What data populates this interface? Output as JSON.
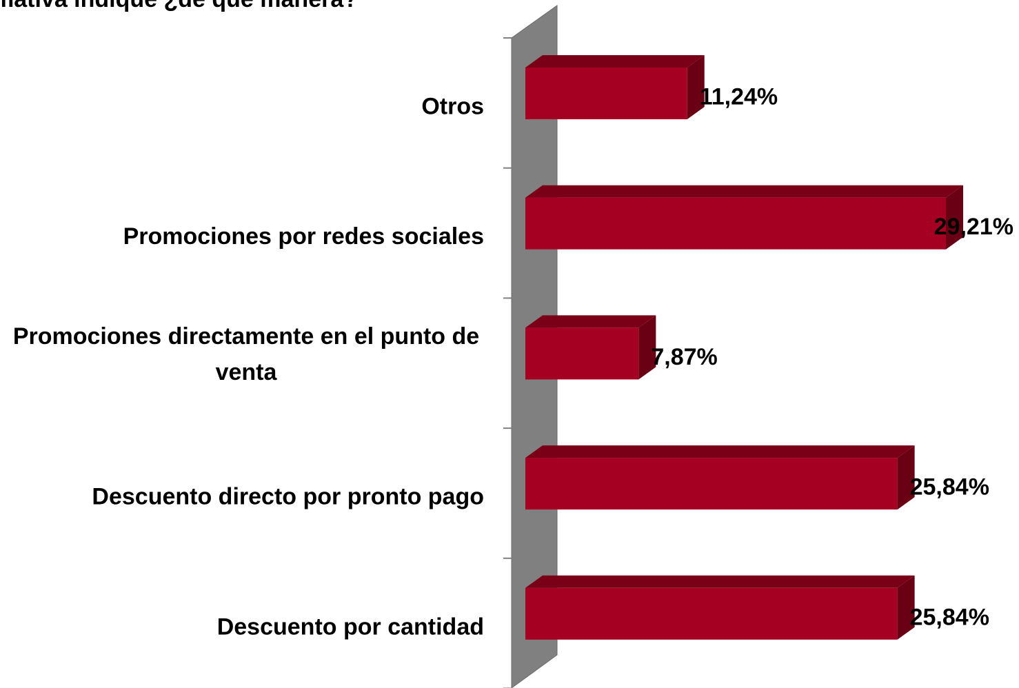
{
  "chart_data": {
    "type": "bar3d",
    "title": "mativa indique ¿de qué manera?",
    "categories": [
      "Otros",
      "Promociones por redes sociales",
      "Promociones directamente en el punto de venta",
      "Descuento directo por pronto pago",
      "Descuento por cantidad"
    ],
    "values": [
      11.24,
      29.21,
      7.87,
      25.84,
      25.84
    ],
    "value_labels": [
      "11,24%",
      "29,21%",
      "7,87%",
      "25,84%",
      "25,84%"
    ],
    "color": "#a50021"
  }
}
